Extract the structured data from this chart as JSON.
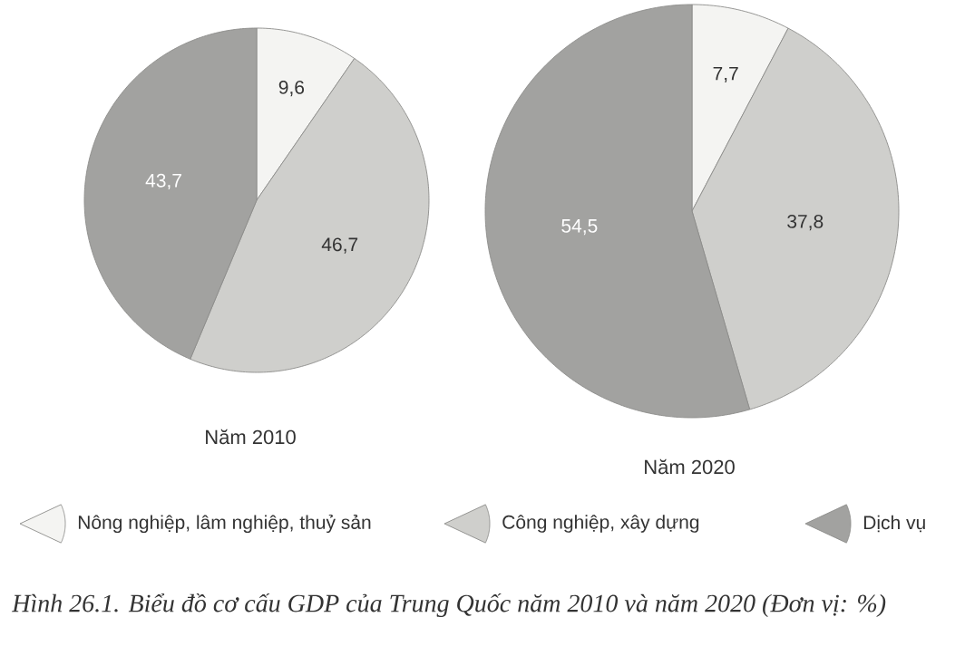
{
  "chart_data": [
    {
      "type": "pie",
      "title": "Năm 2010",
      "categories": [
        "Nông nghiệp, lâm nghiệp, thuỷ sản",
        "Công nghiệp, xây dựng",
        "Dịch vụ"
      ],
      "values": [
        9.6,
        46.7,
        43.7
      ],
      "colors": [
        "#f4f4f2",
        "#cfcfcc",
        "#a2a2a0"
      ],
      "value_labels": [
        "9,6",
        "46,7",
        "43,7"
      ],
      "legend": "bottom",
      "annotations": [
        "Hình 26.1. Biểu đồ cơ cấu GDP của Trung Quốc năm 2010 và năm 2020 (Đơn vị: %)"
      ]
    },
    {
      "type": "pie",
      "title": "Năm 2020",
      "categories": [
        null,
        null,
        null
      ],
      "values": [
        7.7,
        37.8,
        54.5
      ],
      "colors": [
        "#f4f4f2",
        "#cfcfcc",
        "#a2a2a0"
      ],
      "value_labels": [
        "7,7",
        "37,8",
        "54,5"
      ]
    }
  ]
}
